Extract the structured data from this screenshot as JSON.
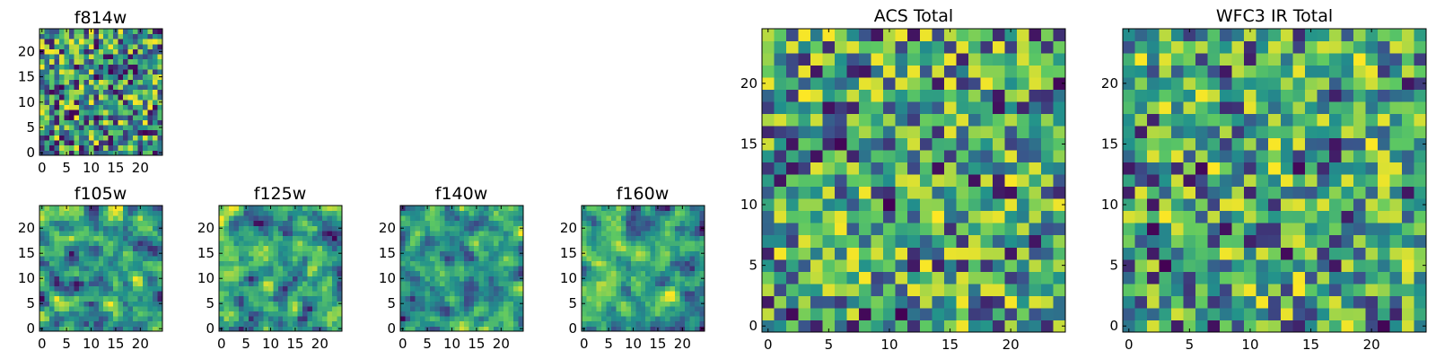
{
  "figure": {
    "colors": {
      "background": "#ffffff",
      "axis": "#000000",
      "colormap_viridis": [
        "#440154",
        "#3b528b",
        "#21918c",
        "#5ec962",
        "#fde725"
      ]
    }
  },
  "chart_data": [
    {
      "id": "f814w",
      "type": "heatmap",
      "title": "f814w",
      "grid_size": 25,
      "xlim": [
        0,
        24
      ],
      "ylim": [
        0,
        24
      ],
      "xticks": [
        "0",
        "5",
        "10",
        "15",
        "20"
      ],
      "yticks": [
        "0",
        "5",
        "10",
        "15",
        "20"
      ],
      "pattern": {
        "seed": 11,
        "smooth": 0,
        "gamma": 1.0
      }
    },
    {
      "id": "f105w",
      "type": "heatmap",
      "title": "f105w",
      "grid_size": 25,
      "xlim": [
        0,
        24
      ],
      "ylim": [
        0,
        24
      ],
      "xticks": [
        "0",
        "5",
        "10",
        "15",
        "20"
      ],
      "yticks": [
        "0",
        "5",
        "10",
        "15",
        "20"
      ],
      "pattern": {
        "seed": 23,
        "smooth": 1,
        "gamma": 0.8
      }
    },
    {
      "id": "f125w",
      "type": "heatmap",
      "title": "f125w",
      "grid_size": 25,
      "xlim": [
        0,
        24
      ],
      "ylim": [
        0,
        24
      ],
      "xticks": [
        "0",
        "5",
        "10",
        "15",
        "20"
      ],
      "yticks": [
        "0",
        "5",
        "10",
        "15",
        "20"
      ],
      "pattern": {
        "seed": 37,
        "smooth": 1,
        "gamma": 0.8
      }
    },
    {
      "id": "f140w",
      "type": "heatmap",
      "title": "f140w",
      "grid_size": 25,
      "xlim": [
        0,
        24
      ],
      "ylim": [
        0,
        24
      ],
      "xticks": [
        "0",
        "5",
        "10",
        "15",
        "20"
      ],
      "yticks": [
        "0",
        "5",
        "10",
        "15",
        "20"
      ],
      "pattern": {
        "seed": 41,
        "smooth": 1,
        "gamma": 0.8
      }
    },
    {
      "id": "f160w",
      "type": "heatmap",
      "title": "f160w",
      "grid_size": 25,
      "xlim": [
        0,
        24
      ],
      "ylim": [
        0,
        24
      ],
      "xticks": [
        "0",
        "5",
        "10",
        "15",
        "20"
      ],
      "yticks": [
        "0",
        "5",
        "10",
        "15",
        "20"
      ],
      "pattern": {
        "seed": 53,
        "smooth": 1,
        "gamma": 0.8
      }
    },
    {
      "id": "acs_total",
      "type": "heatmap",
      "title": "ACS Total",
      "grid_size": 25,
      "xlim": [
        0,
        24
      ],
      "ylim": [
        0,
        24
      ],
      "xticks": [
        "0",
        "5",
        "10",
        "15",
        "20"
      ],
      "yticks": [
        "0",
        "5",
        "10",
        "15",
        "20"
      ],
      "pattern": {
        "seed": 67,
        "smooth": 0,
        "gamma": 0.7
      }
    },
    {
      "id": "wfc3_ir_total",
      "type": "heatmap",
      "title": "WFC3 IR Total",
      "grid_size": 25,
      "xlim": [
        0,
        24
      ],
      "ylim": [
        0,
        24
      ],
      "xticks": [
        "0",
        "5",
        "10",
        "15",
        "20"
      ],
      "yticks": [
        "0",
        "5",
        "10",
        "15",
        "20"
      ],
      "pattern": {
        "seed": 79,
        "smooth": 0,
        "gamma": 0.7
      }
    }
  ]
}
